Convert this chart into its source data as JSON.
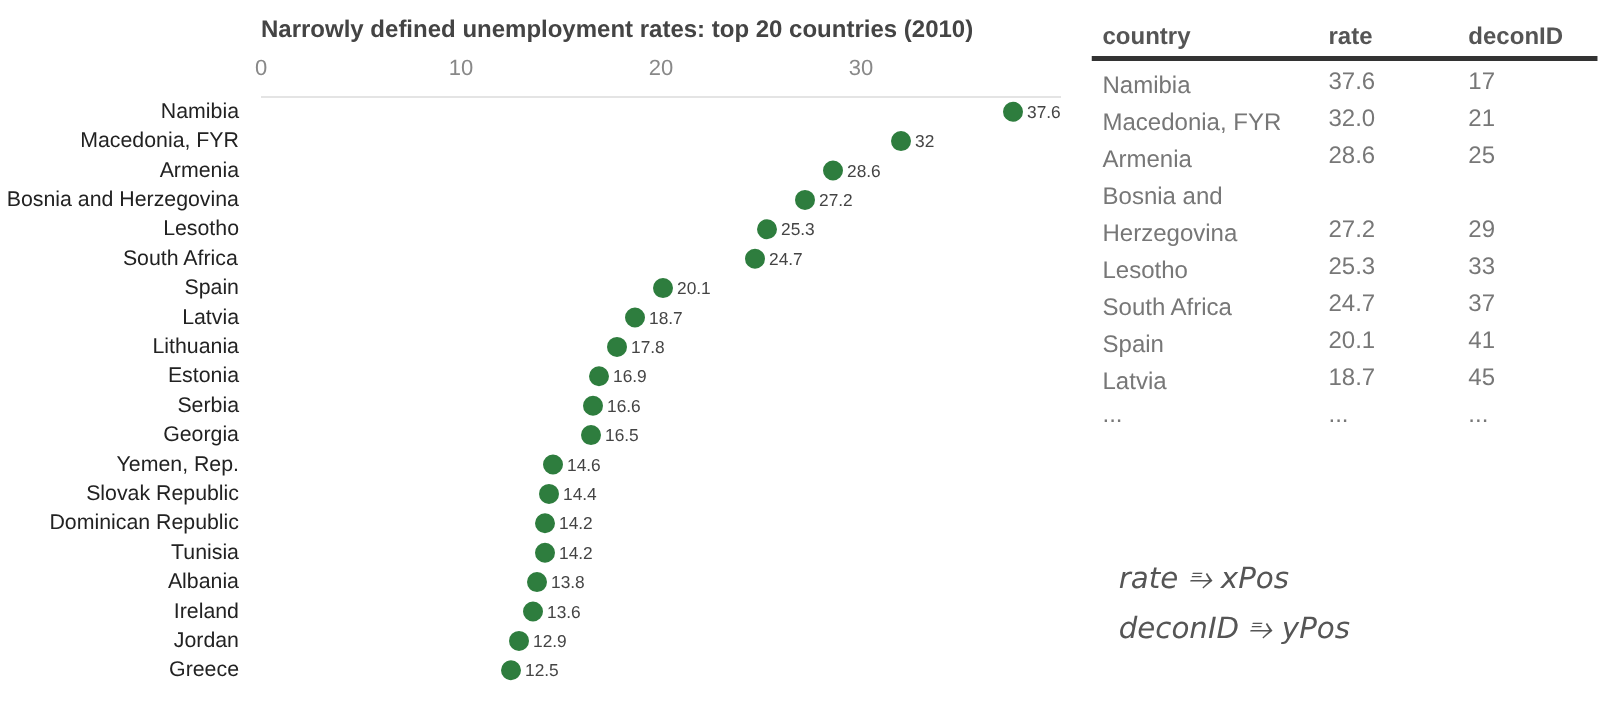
{
  "chart_data": [
    {
      "type": "scatter",
      "title": "Narrowly defined unemployment rates: top 20 countries (2010)",
      "categories": [
        "Namibia",
        "Macedonia, FYR",
        "Armenia",
        "Bosnia and Herzegovina",
        "Lesotho",
        "South Africa",
        "Spain",
        "Latvia",
        "Lithuania",
        "Estonia",
        "Serbia",
        "Georgia",
        "Yemen, Rep.",
        "Slovak Republic",
        "Dominican Republic",
        "Tunisia",
        "Albania",
        "Ireland",
        "Jordan",
        "Greece"
      ],
      "values": [
        37.6,
        32,
        28.6,
        27.2,
        25.3,
        24.7,
        20.1,
        18.7,
        17.8,
        16.9,
        16.6,
        16.5,
        14.6,
        14.4,
        14.2,
        14.2,
        13.8,
        13.6,
        12.9,
        12.5
      ],
      "color": "#2e7d3e",
      "marker": "circle",
      "data_labels": true,
      "orientation": "horizontal",
      "xlim": [
        0,
        40
      ],
      "xticks": [
        0,
        10,
        20,
        30
      ],
      "grid": false
    },
    {
      "type": "other",
      "categories": [
        "country",
        "rate",
        "deconID"
      ],
      "annotations": [
        "Namibia",
        "37.6",
        "17",
        "Macedonia, FYR",
        "32.0",
        "21",
        "Armenia",
        "28.6",
        "25",
        "Bosnia and Herzegovina",
        "27.2",
        "29",
        "Lesotho",
        "25.3",
        "33",
        "South Africa",
        "24.7",
        "37",
        "Spain",
        "20.1",
        "41",
        "Latvia",
        "18.7",
        "45",
        "...",
        "...",
        "..."
      ]
    },
    {
      "type": "other",
      "annotations": [
        "rate ⥱ xPos",
        "deconID ⥱ yPos"
      ]
    }
  ]
}
